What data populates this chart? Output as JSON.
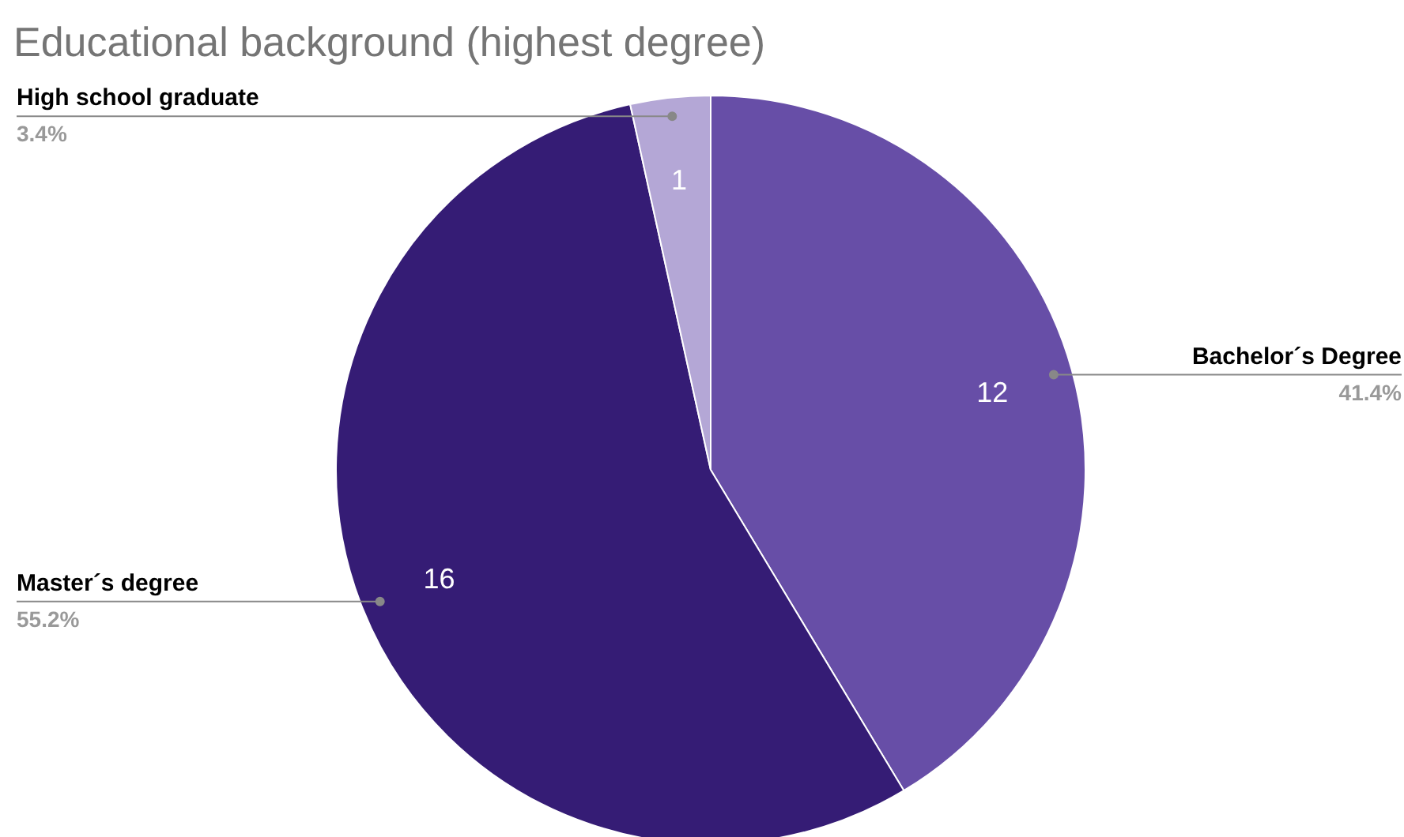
{
  "chart_data": {
    "type": "pie",
    "title": "Educational background (highest degree)",
    "categories": [
      "Bachelor´s Degree",
      "Master´s degree",
      "High school graduate"
    ],
    "values": [
      12,
      16,
      1
    ],
    "colors": [
      "#674ea7",
      "#351c75",
      "#b4a7d6"
    ],
    "data_labels": true,
    "annotations": [
      "41.4%",
      "55.2%",
      "3.4%"
    ]
  }
}
